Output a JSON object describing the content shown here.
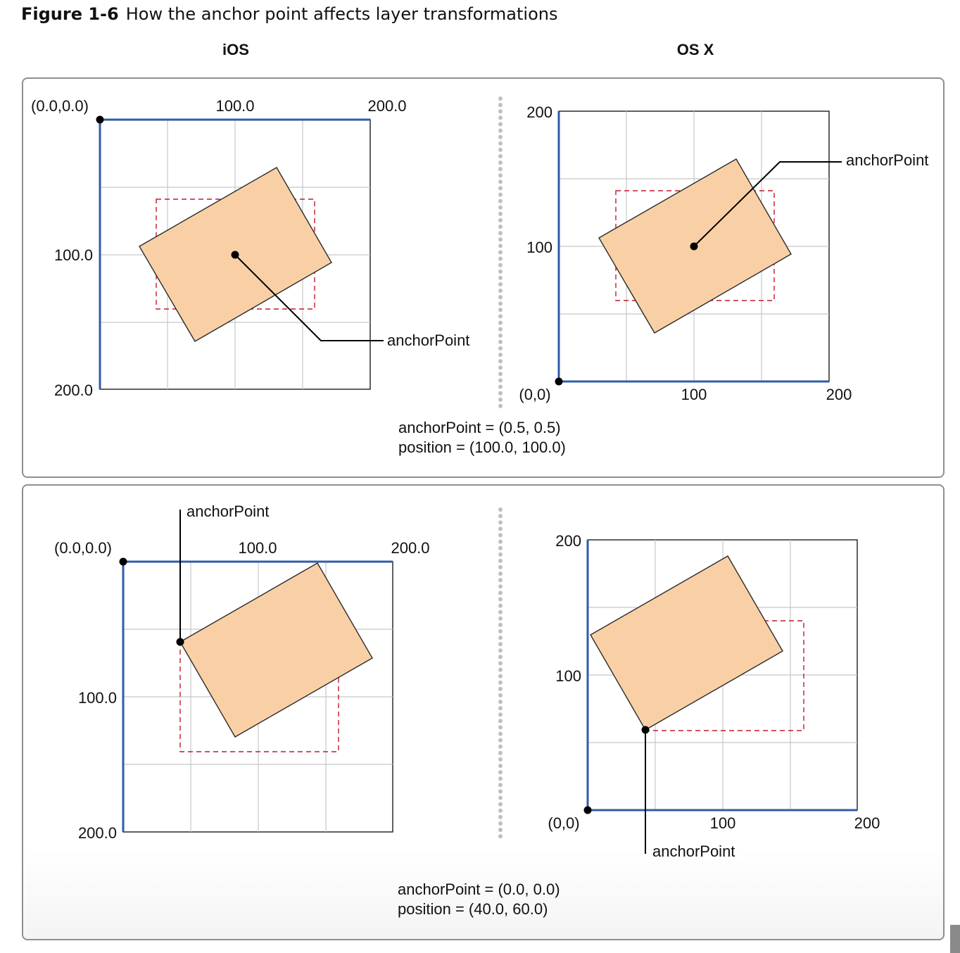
{
  "figure": {
    "number": "Figure 1-6",
    "title": "How the anchor point affects layer transformations"
  },
  "columns": {
    "ios": "iOS",
    "osx": "OS X"
  },
  "ios_axes": {
    "origin": "(0.0,0.0)",
    "mid": "100.0",
    "max": "200.0"
  },
  "osx_axes": {
    "origin": "(0,0)",
    "mid": "100",
    "max": "200"
  },
  "anchor_label": "anchorPoint",
  "panels": [
    {
      "anchor_point_text": "anchorPoint = (0.5, 0.5)",
      "position_text": "position = (100.0, 100.0)"
    },
    {
      "anchor_point_text": "anchorPoint = (0.0, 0.0)",
      "position_text": "position = (40.0, 60.0)"
    }
  ],
  "colors": {
    "axis_blue": "#2e5caa",
    "grid": "#c8c8c8",
    "layer_fill": "#f9d0a6",
    "dashed_red": "#c4182b",
    "divider_dots": "#c0c0c0"
  }
}
